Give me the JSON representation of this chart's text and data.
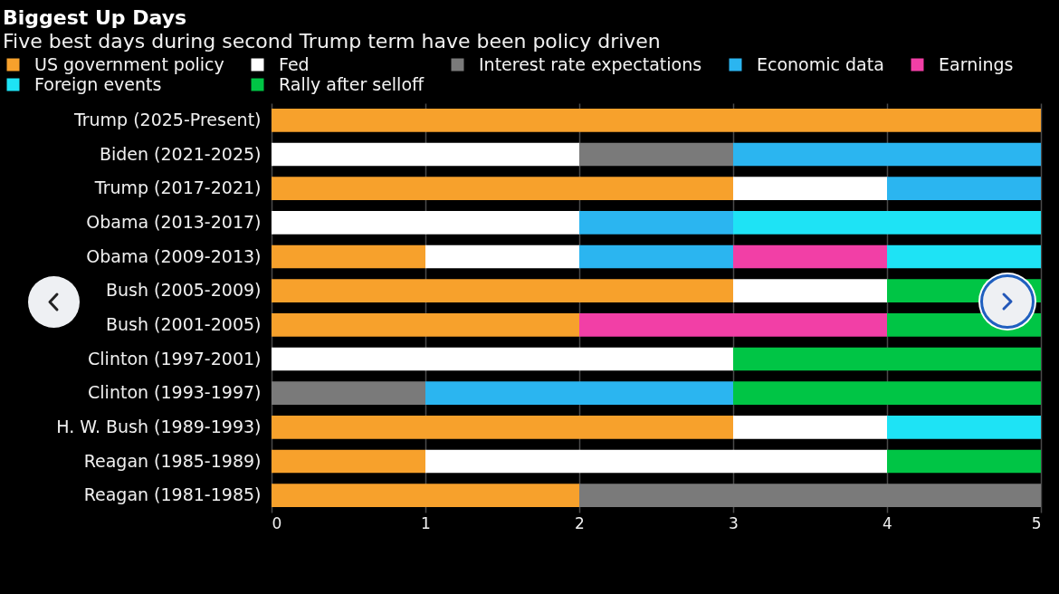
{
  "chart_data": {
    "type": "bar",
    "orientation": "horizontal",
    "stacked": true,
    "title": "Biggest Up Days",
    "subtitle": "Five best days during second Trump term have been policy driven",
    "categories": [
      "Trump (2025-Present)",
      "Biden (2021-2025)",
      "Trump (2017-2021)",
      "Obama (2013-2017)",
      "Obama (2009-2013)",
      "Bush (2005-2009)",
      "Bush (2001-2005)",
      "Clinton (1997-2001)",
      "Clinton (1993-1997)",
      "H. W. Bush (1989-1993)",
      "Reagan (1985-1989)",
      "Reagan (1981-1985)"
    ],
    "series": [
      {
        "name": "US government policy",
        "color": "#f7a12c",
        "values": [
          5,
          null,
          3,
          null,
          1,
          3,
          2,
          null,
          null,
          3,
          1,
          2
        ]
      },
      {
        "name": "Fed",
        "color": "#ffffff",
        "values": [
          null,
          2,
          1,
          2,
          1,
          1,
          null,
          3,
          null,
          1,
          3,
          null
        ]
      },
      {
        "name": "Interest rate expectations",
        "color": "#7a7a7a",
        "values": [
          null,
          1,
          null,
          null,
          null,
          null,
          null,
          null,
          1,
          null,
          null,
          3
        ]
      },
      {
        "name": "Economic data",
        "color": "#2bb5f0",
        "values": [
          null,
          2,
          1,
          1,
          1,
          null,
          null,
          null,
          2,
          null,
          null,
          null
        ]
      },
      {
        "name": "Earnings",
        "color": "#f23fa6",
        "values": [
          null,
          null,
          null,
          null,
          1,
          null,
          2,
          null,
          null,
          null,
          null,
          null
        ]
      },
      {
        "name": "Foreign events",
        "color": "#1ee3f5",
        "values": [
          null,
          null,
          null,
          2,
          1,
          null,
          null,
          null,
          null,
          1,
          null,
          null
        ]
      },
      {
        "name": "Rally after selloff",
        "color": "#00c545",
        "values": [
          null,
          null,
          null,
          null,
          null,
          1,
          1,
          2,
          2,
          null,
          1,
          null
        ]
      }
    ],
    "xlim": [
      0,
      5
    ],
    "xticks": [
      0,
      1,
      2,
      3,
      4,
      5
    ],
    "grid": "x",
    "legend": "top left"
  }
}
